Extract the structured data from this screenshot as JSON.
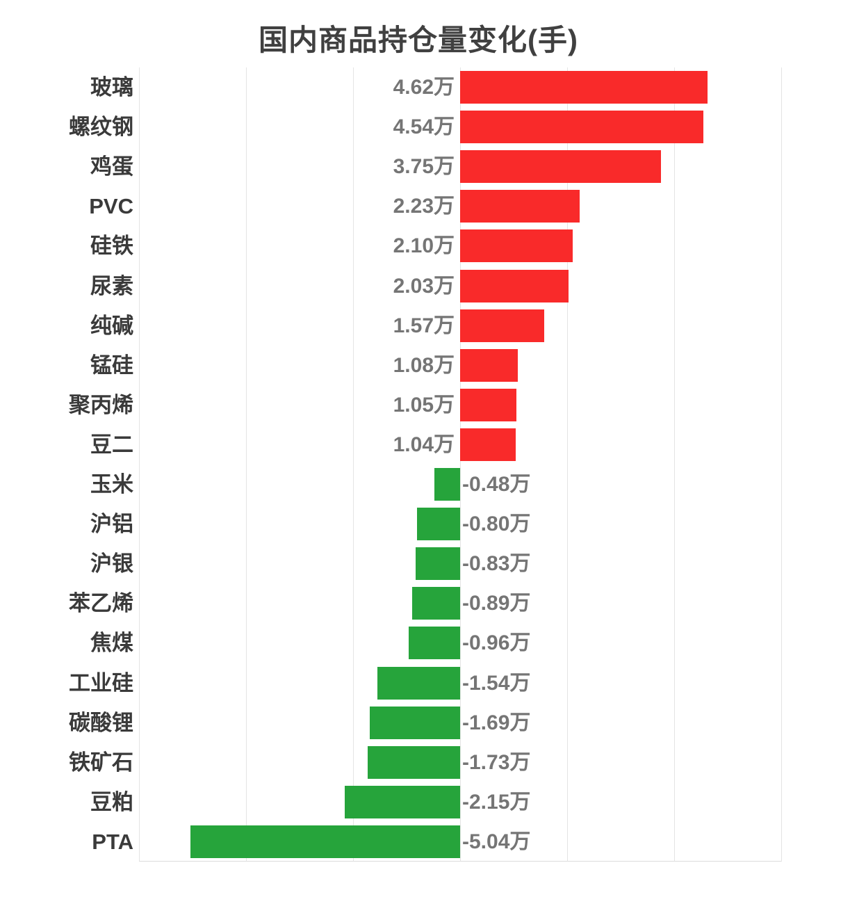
{
  "title": "国内商品持仓量变化(手)",
  "colors": {
    "positive_bar": "#f92a2a",
    "negative_bar": "#26a43b",
    "title_text": "#404040",
    "category_text": "#3a3a3a",
    "value_text": "#757575",
    "gridline": "#e4e4e4",
    "axis_line": "#dcdcdc",
    "background": "#ffffff"
  },
  "chart_data": {
    "type": "bar",
    "orientation": "horizontal",
    "title": "国内商品持仓量变化(手)",
    "xlabel": "",
    "ylabel": "",
    "unit": "万手",
    "xlim": [
      -6,
      6
    ],
    "grid_step": 2,
    "grid": true,
    "legend": "none",
    "x_tick_labels_visible": false,
    "categories": [
      "玻璃",
      "螺纹钢",
      "鸡蛋",
      "PVC",
      "硅铁",
      "尿素",
      "纯碱",
      "锰硅",
      "聚丙烯",
      "豆二",
      "玉米",
      "沪铝",
      "沪银",
      "苯乙烯",
      "焦煤",
      "工业硅",
      "碳酸锂",
      "铁矿石",
      "豆粕",
      "PTA"
    ],
    "values": [
      4.62,
      4.54,
      3.75,
      2.23,
      2.1,
      2.03,
      1.57,
      1.08,
      1.05,
      1.04,
      -0.48,
      -0.8,
      -0.83,
      -0.89,
      -0.96,
      -1.54,
      -1.69,
      -1.73,
      -2.15,
      -5.04
    ],
    "value_labels": [
      "4.62万",
      "4.54万",
      "3.75万",
      "2.23万",
      "2.10万",
      "2.03万",
      "1.57万",
      "1.08万",
      "1.05万",
      "1.04万",
      "-0.48万",
      "-0.80万",
      "-0.83万",
      "-0.89万",
      "-0.96万",
      "-1.54万",
      "-1.69万",
      "-1.73万",
      "-2.15万",
      "-5.04万"
    ]
  }
}
